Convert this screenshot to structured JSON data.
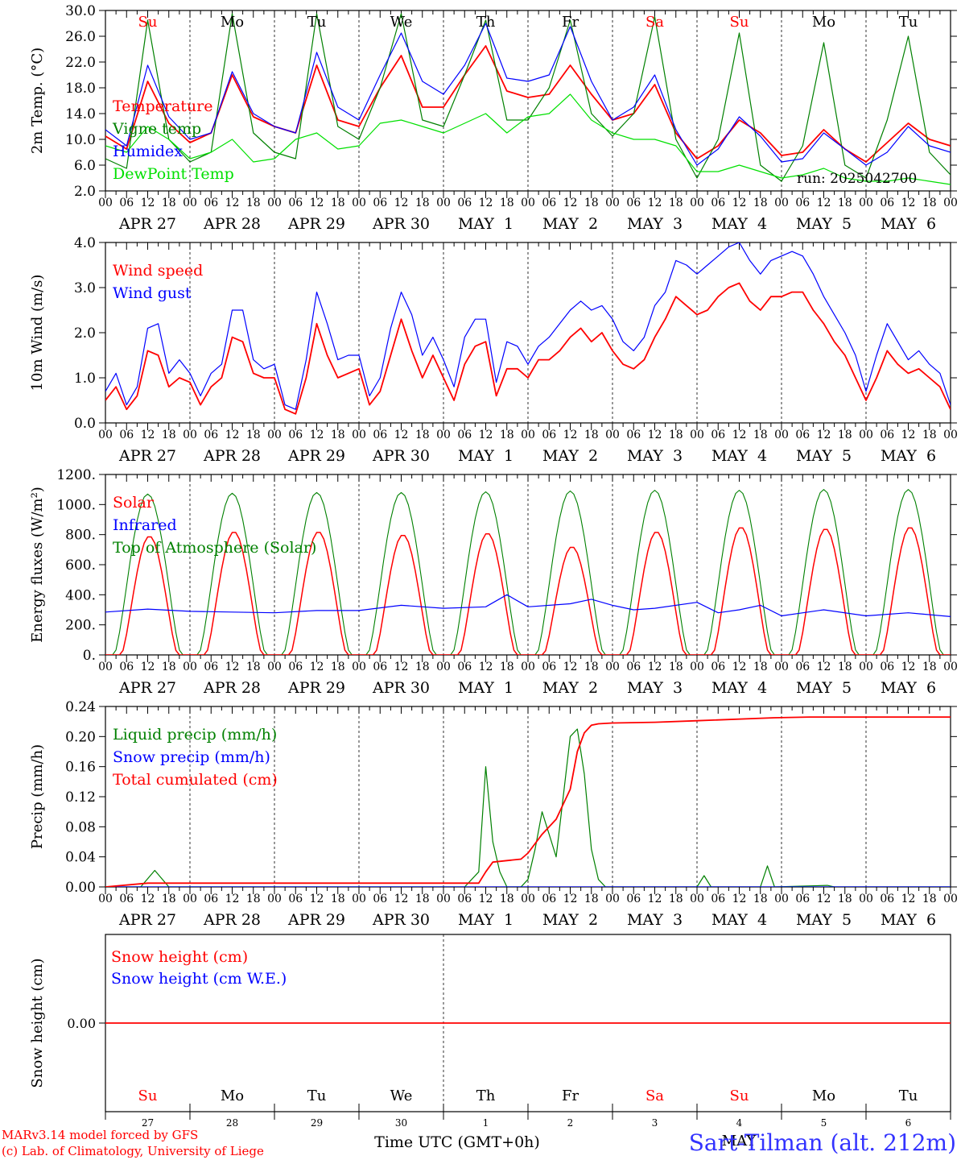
{
  "run_label": "run: 2025042700",
  "footer": {
    "model_line1": "MARv3.14 model forced by GFS",
    "model_line2": "(c) Lab. of Climatology, University of Liege",
    "xaxis_title": "Time UTC (GMT+0h)",
    "station": "Sart-Tilman (alt. 212m)",
    "month_label": "MAY"
  },
  "days": {
    "weekday_labels": [
      "Su",
      "Mo",
      "Tu",
      "We",
      "Th",
      "Fr",
      "Sa",
      "Su",
      "Mo",
      "Tu"
    ],
    "weekend_flags": [
      true,
      false,
      false,
      false,
      false,
      false,
      true,
      true,
      false,
      false
    ],
    "date_labels": [
      "APR 27",
      "APR 28",
      "APR 29",
      "APR 30",
      "MAY  1",
      "MAY  2",
      "MAY  3",
      "MAY  4",
      "MAY  5",
      "MAY  6"
    ],
    "day_numbers": [
      "27",
      "28",
      "29",
      "30",
      "1",
      "2",
      "3",
      "4",
      "5",
      "6"
    ],
    "hour_labels": [
      "00",
      "06",
      "12",
      "18"
    ],
    "final_hour_label": "00"
  },
  "colors": {
    "red": "#ff0000",
    "green": "#008000",
    "blue": "#0000ff",
    "lightgreen": "#00e000",
    "weekend": "#ff0000"
  },
  "chart_data": [
    {
      "type": "line",
      "ylabel": "2m Temp. (°C)",
      "ylim": [
        2,
        30
      ],
      "ytick_labels": [
        "2.0",
        "6.0",
        "10.0",
        "14.0",
        "18.0",
        "22.0",
        "26.0",
        "30.0"
      ],
      "x_unit": "hours since 2025-04-27 00 UTC",
      "legend": [
        "Temperature",
        "Vigne temp",
        "Humidex",
        "DewPoint Temp"
      ],
      "series": [
        {
          "name": "Temperature",
          "x": [
            0,
            6,
            12,
            18,
            24,
            30,
            36,
            42,
            48,
            54,
            60,
            66,
            72,
            78,
            84,
            90,
            96,
            102,
            108,
            114,
            120,
            126,
            132,
            138,
            144,
            150,
            156,
            162,
            168,
            174,
            180,
            186,
            192,
            198,
            204,
            210,
            216,
            222,
            228,
            234,
            240
          ],
          "y": [
            10.5,
            8.5,
            19,
            12.5,
            9.5,
            11,
            20,
            13.5,
            12,
            11,
            21.5,
            13,
            12,
            18,
            23,
            15,
            15,
            20,
            24.5,
            17.5,
            16.5,
            17,
            21.5,
            17,
            13,
            14,
            18.5,
            11,
            7,
            9,
            13,
            11,
            7.5,
            8,
            11.5,
            8.5,
            6.5,
            9.5,
            12.5,
            10,
            9
          ]
        },
        {
          "name": "Vigne temp",
          "x": [
            0,
            6,
            12,
            18,
            24,
            30,
            36,
            42,
            48,
            54,
            60,
            66,
            72,
            78,
            84,
            90,
            96,
            102,
            108,
            114,
            120,
            126,
            132,
            138,
            144,
            150,
            156,
            162,
            168,
            174,
            180,
            186,
            192,
            198,
            204,
            210,
            216,
            222,
            228,
            234,
            240
          ],
          "y": [
            7,
            5.5,
            28.5,
            10,
            6.5,
            8,
            29.5,
            11,
            8,
            7,
            29.5,
            12,
            10,
            18,
            29.5,
            13,
            12,
            20,
            28.5,
            13,
            13,
            18,
            28.5,
            14,
            10.5,
            14,
            29,
            10,
            4,
            10,
            26.5,
            6,
            3.5,
            9,
            25,
            6,
            4,
            13,
            26,
            8,
            4.5
          ]
        },
        {
          "name": "Humidex",
          "x": [
            0,
            6,
            12,
            18,
            24,
            30,
            36,
            42,
            48,
            54,
            60,
            66,
            72,
            78,
            84,
            90,
            96,
            102,
            108,
            114,
            120,
            126,
            132,
            138,
            144,
            150,
            156,
            162,
            168,
            174,
            180,
            186,
            192,
            198,
            204,
            210,
            216,
            222,
            228,
            234,
            240
          ],
          "y": [
            11.5,
            9,
            21.5,
            13.5,
            10,
            11,
            20.5,
            14,
            12,
            11,
            23.5,
            15,
            13,
            20,
            26.5,
            19,
            17,
            21.5,
            28,
            19.5,
            19,
            20,
            27.5,
            19,
            13,
            15,
            20,
            11.5,
            6,
            8.5,
            13.5,
            10.5,
            6.5,
            7,
            11,
            8.5,
            6,
            8,
            12,
            9,
            8
          ]
        },
        {
          "name": "DewPoint Temp",
          "x": [
            0,
            6,
            12,
            18,
            24,
            30,
            36,
            42,
            48,
            54,
            60,
            66,
            72,
            78,
            84,
            90,
            96,
            102,
            108,
            114,
            120,
            126,
            132,
            138,
            144,
            150,
            156,
            162,
            168,
            174,
            180,
            186,
            192,
            198,
            204,
            210,
            216,
            222,
            228,
            234,
            240
          ],
          "y": [
            9,
            8,
            12,
            10,
            7,
            8,
            10,
            6.5,
            7,
            10,
            11,
            8.5,
            9,
            12.5,
            13,
            12,
            11,
            12.5,
            14,
            11,
            13.5,
            14,
            17,
            13,
            11,
            10,
            10,
            9,
            5,
            5,
            6,
            5,
            4,
            4.5,
            5.5,
            4,
            3.5,
            3.5,
            4,
            3.5,
            3
          ]
        }
      ]
    },
    {
      "type": "line",
      "ylabel": "10m Wind (m/s)",
      "ylim": [
        0,
        4
      ],
      "ytick_labels": [
        "0.0",
        "1.0",
        "2.0",
        "3.0",
        "4.0"
      ],
      "x_unit": "hours since 2025-04-27 00 UTC",
      "legend": [
        "Wind speed",
        "Wind gust"
      ],
      "series": [
        {
          "name": "Wind speed",
          "x": [
            0,
            3,
            6,
            9,
            12,
            15,
            18,
            21,
            24,
            27,
            30,
            33,
            36,
            39,
            42,
            45,
            48,
            51,
            54,
            57,
            60,
            63,
            66,
            69,
            72,
            75,
            78,
            81,
            84,
            87,
            90,
            93,
            96,
            99,
            102,
            105,
            108,
            111,
            114,
            117,
            120,
            123,
            126,
            129,
            132,
            135,
            138,
            141,
            144,
            147,
            150,
            153,
            156,
            159,
            162,
            165,
            168,
            171,
            174,
            177,
            180,
            183,
            186,
            189,
            192,
            195,
            198,
            201,
            204,
            207,
            210,
            213,
            216,
            219,
            222,
            225,
            228,
            231,
            234,
            237,
            240
          ],
          "y": [
            0.5,
            0.8,
            0.3,
            0.6,
            1.6,
            1.5,
            0.8,
            1.0,
            0.9,
            0.4,
            0.8,
            1.0,
            1.9,
            1.8,
            1.1,
            1.0,
            1.0,
            0.3,
            0.2,
            1.0,
            2.2,
            1.5,
            1.0,
            1.1,
            1.2,
            0.4,
            0.7,
            1.5,
            2.3,
            1.6,
            1.0,
            1.5,
            1.0,
            0.5,
            1.3,
            1.7,
            1.8,
            0.6,
            1.2,
            1.2,
            1.0,
            1.4,
            1.4,
            1.6,
            1.9,
            2.1,
            1.8,
            2.0,
            1.6,
            1.3,
            1.2,
            1.4,
            1.9,
            2.3,
            2.8,
            2.6,
            2.4,
            2.5,
            2.8,
            3.0,
            3.1,
            2.7,
            2.5,
            2.8,
            2.8,
            2.9,
            2.9,
            2.5,
            2.2,
            1.8,
            1.5,
            1.0,
            0.5,
            1.0,
            1.6,
            1.3,
            1.1,
            1.2,
            1.0,
            0.8,
            0.3
          ]
        },
        {
          "name": "Wind gust",
          "x": [
            0,
            3,
            6,
            9,
            12,
            15,
            18,
            21,
            24,
            27,
            30,
            33,
            36,
            39,
            42,
            45,
            48,
            51,
            54,
            57,
            60,
            63,
            66,
            69,
            72,
            75,
            78,
            81,
            84,
            87,
            90,
            93,
            96,
            99,
            102,
            105,
            108,
            111,
            114,
            117,
            120,
            123,
            126,
            129,
            132,
            135,
            138,
            141,
            144,
            147,
            150,
            153,
            156,
            159,
            162,
            165,
            168,
            171,
            174,
            177,
            180,
            183,
            186,
            189,
            192,
            195,
            198,
            201,
            204,
            207,
            210,
            213,
            216,
            219,
            222,
            225,
            228,
            231,
            234,
            237,
            240
          ],
          "y": [
            0.7,
            1.1,
            0.4,
            0.8,
            2.1,
            2.2,
            1.1,
            1.4,
            1.1,
            0.6,
            1.1,
            1.3,
            2.5,
            2.5,
            1.4,
            1.2,
            1.3,
            0.4,
            0.3,
            1.4,
            2.9,
            2.2,
            1.4,
            1.5,
            1.5,
            0.6,
            1.0,
            2.1,
            2.9,
            2.4,
            1.5,
            1.9,
            1.4,
            0.8,
            1.9,
            2.3,
            2.3,
            0.9,
            1.8,
            1.7,
            1.3,
            1.7,
            1.9,
            2.2,
            2.5,
            2.7,
            2.5,
            2.6,
            2.3,
            1.8,
            1.6,
            1.9,
            2.6,
            2.9,
            3.6,
            3.5,
            3.3,
            3.5,
            3.7,
            3.9,
            4.0,
            3.6,
            3.3,
            3.6,
            3.7,
            3.8,
            3.7,
            3.3,
            2.8,
            2.4,
            2.0,
            1.5,
            0.7,
            1.5,
            2.2,
            1.8,
            1.4,
            1.6,
            1.3,
            1.1,
            0.4
          ]
        }
      ]
    },
    {
      "type": "line",
      "ylabel": "Energy fluxes (W/m²)",
      "ylim": [
        0,
        1200
      ],
      "ytick_labels": [
        "0.",
        "200.",
        "400.",
        "600.",
        "800.",
        "1000.",
        "1200."
      ],
      "x_unit": "hours since 2025-04-27 00 UTC",
      "legend": [
        "Solar",
        "Infrared",
        "Top of Atmosphere (Solar)"
      ],
      "daily_peaks": {
        "solar": [
          790,
          820,
          820,
          800,
          810,
          720,
          820,
          850,
          840,
          850
        ],
        "toa": [
          1070,
          1075,
          1080,
          1080,
          1085,
          1090,
          1095,
          1095,
          1100,
          1100
        ]
      },
      "series": [
        {
          "name": "Infrared",
          "x": [
            0,
            12,
            24,
            36,
            48,
            60,
            72,
            84,
            96,
            108,
            114,
            120,
            132,
            138,
            144,
            150,
            156,
            168,
            174,
            180,
            186,
            192,
            204,
            216,
            228,
            240
          ],
          "y": [
            285,
            305,
            290,
            285,
            280,
            295,
            295,
            330,
            310,
            320,
            400,
            320,
            340,
            370,
            330,
            300,
            310,
            350,
            280,
            300,
            330,
            260,
            300,
            260,
            280,
            255
          ]
        }
      ]
    },
    {
      "type": "line",
      "ylabel": "Precip (mm/h)",
      "ylim": [
        0,
        0.24
      ],
      "ytick_labels": [
        "0.00",
        "0.04",
        "0.08",
        "0.12",
        "0.16",
        "0.20",
        "0.24"
      ],
      "x_unit": "hours since 2025-04-27 00 UTC",
      "legend": [
        "Liquid precip (mm/h)",
        "Snow precip (mm/h)",
        "Total cumulated (cm)"
      ],
      "series": [
        {
          "name": "Liquid precip (mm/h)",
          "x": [
            0,
            10,
            14,
            18,
            24,
            102,
            106,
            108,
            110,
            112,
            114,
            118,
            120,
            122,
            124,
            126,
            128,
            130,
            132,
            134,
            136,
            138,
            140,
            142,
            144,
            168,
            170,
            172,
            186,
            188,
            190,
            205,
            207,
            240
          ],
          "y": [
            0,
            0,
            0.022,
            0,
            0,
            0,
            0.02,
            0.16,
            0.06,
            0.02,
            0,
            0,
            0.01,
            0.05,
            0.1,
            0.07,
            0.04,
            0.12,
            0.2,
            0.21,
            0.15,
            0.05,
            0.01,
            0,
            0,
            0,
            0.015,
            0,
            0,
            0.028,
            0,
            0.002,
            0,
            0
          ]
        },
        {
          "name": "Snow precip (mm/h)",
          "x": [
            0,
            240
          ],
          "y": [
            0,
            0
          ]
        },
        {
          "name": "Total cumulated (cm)",
          "x": [
            0,
            12,
            24,
            106,
            108,
            110,
            114,
            118,
            120,
            124,
            128,
            132,
            134,
            136,
            138,
            140,
            144,
            156,
            168,
            190,
            200,
            240
          ],
          "y": [
            0,
            0.005,
            0.005,
            0.005,
            0.02,
            0.033,
            0.035,
            0.037,
            0.045,
            0.07,
            0.09,
            0.13,
            0.18,
            0.205,
            0.215,
            0.217,
            0.218,
            0.219,
            0.221,
            0.225,
            0.226,
            0.226
          ]
        }
      ]
    },
    {
      "type": "line",
      "ylabel": "Snow height (cm)",
      "ylim": [
        -1,
        1
      ],
      "ytick_labels": [
        "0.00"
      ],
      "x_unit": "hours since 2025-04-27 00 UTC",
      "legend": [
        "Snow height (cm)",
        "Snow height (cm W.E.)"
      ],
      "series": [
        {
          "name": "Snow height (cm)",
          "x": [
            0,
            240
          ],
          "y": [
            0,
            0
          ]
        }
      ]
    }
  ]
}
